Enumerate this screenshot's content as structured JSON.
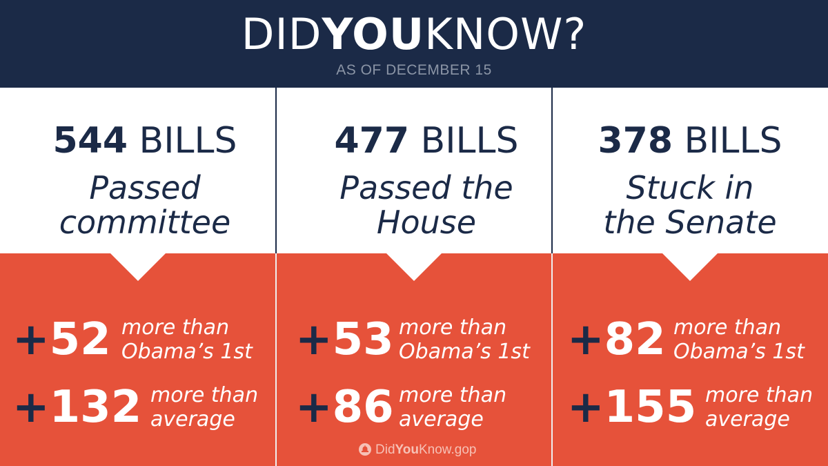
{
  "header": {
    "title_part1": "DID",
    "title_part2": "YOU",
    "title_part3": "KNOW?",
    "subtitle": "AS OF DECEMBER 15"
  },
  "columns": [
    {
      "count_num": "544",
      "count_unit": "BILLS",
      "desc_line1": "Passed",
      "desc_line2": "committee",
      "stat1_num": "52",
      "stat1_line1": "more than",
      "stat1_line2": "Obama’s 1st",
      "stat2_num": "132",
      "stat2_line1": "more than",
      "stat2_line2": "average"
    },
    {
      "count_num": "477",
      "count_unit": "BILLS",
      "desc_line1": "Passed the",
      "desc_line2": "House",
      "stat1_num": "53",
      "stat1_line1": "more than",
      "stat1_line2": "Obama’s 1st",
      "stat2_num": "86",
      "stat2_line1": "more than",
      "stat2_line2": "average"
    },
    {
      "count_num": "378",
      "count_unit": "BILLS",
      "desc_line1": "Stuck in",
      "desc_line2": "the Senate",
      "stat1_num": "82",
      "stat1_line1": "more than",
      "stat1_line2": "Obama’s 1st",
      "stat2_num": "155",
      "stat2_line1": "more than",
      "stat2_line2": "average"
    }
  ],
  "plus_sign": "+",
  "footer": {
    "icon": "capitol-dome-icon",
    "part1": "Did",
    "part2": "You",
    "part3": "Know.gop"
  },
  "colors": {
    "navy": "#1b2a47",
    "red": "#e6523a",
    "white": "#ffffff"
  }
}
